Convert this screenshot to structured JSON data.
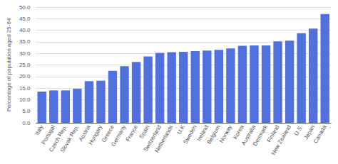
{
  "chart_data": {
    "type": "bar",
    "categories": [
      "Italy",
      "Portugal",
      "Czech Rep.",
      "Slovak Rep.",
      "Austria",
      "Hungary",
      "Greece",
      "Germany",
      "France",
      "Spain",
      "Switzerland",
      "Netherlands",
      "U.K",
      "Sweden",
      "Ireland",
      "Belgium",
      "Norway",
      "Korea",
      "Australia",
      "Denmark",
      "Finland",
      "New Zealand",
      "U.S.",
      "Japan",
      "Canada"
    ],
    "values": [
      13.5,
      14.0,
      14.0,
      14.7,
      18.0,
      18.2,
      22.5,
      24.5,
      26.3,
      28.7,
      30.2,
      30.5,
      30.7,
      31.0,
      31.2,
      31.5,
      32.1,
      33.3,
      33.4,
      33.4,
      35.2,
      35.5,
      38.7,
      40.7,
      47.0
    ],
    "ylabel": "Percentage of population aged 25-64",
    "ylim": [
      0,
      50
    ],
    "yticks": [
      {
        "value": 0,
        "label": "0.0"
      },
      {
        "value": 5,
        "label": "5.0"
      },
      {
        "value": 10,
        "label": "10.0"
      },
      {
        "value": 15,
        "label": "15.0"
      },
      {
        "value": 20,
        "label": "20.0"
      },
      {
        "value": 25,
        "label": "25.0"
      },
      {
        "value": 30,
        "label": "30.0"
      },
      {
        "value": 35,
        "label": "35.0"
      },
      {
        "value": 40,
        "label": "40.0"
      },
      {
        "value": 45,
        "label": "45.0"
      },
      {
        "value": 50,
        "label": "50.0"
      }
    ],
    "grid": true
  }
}
